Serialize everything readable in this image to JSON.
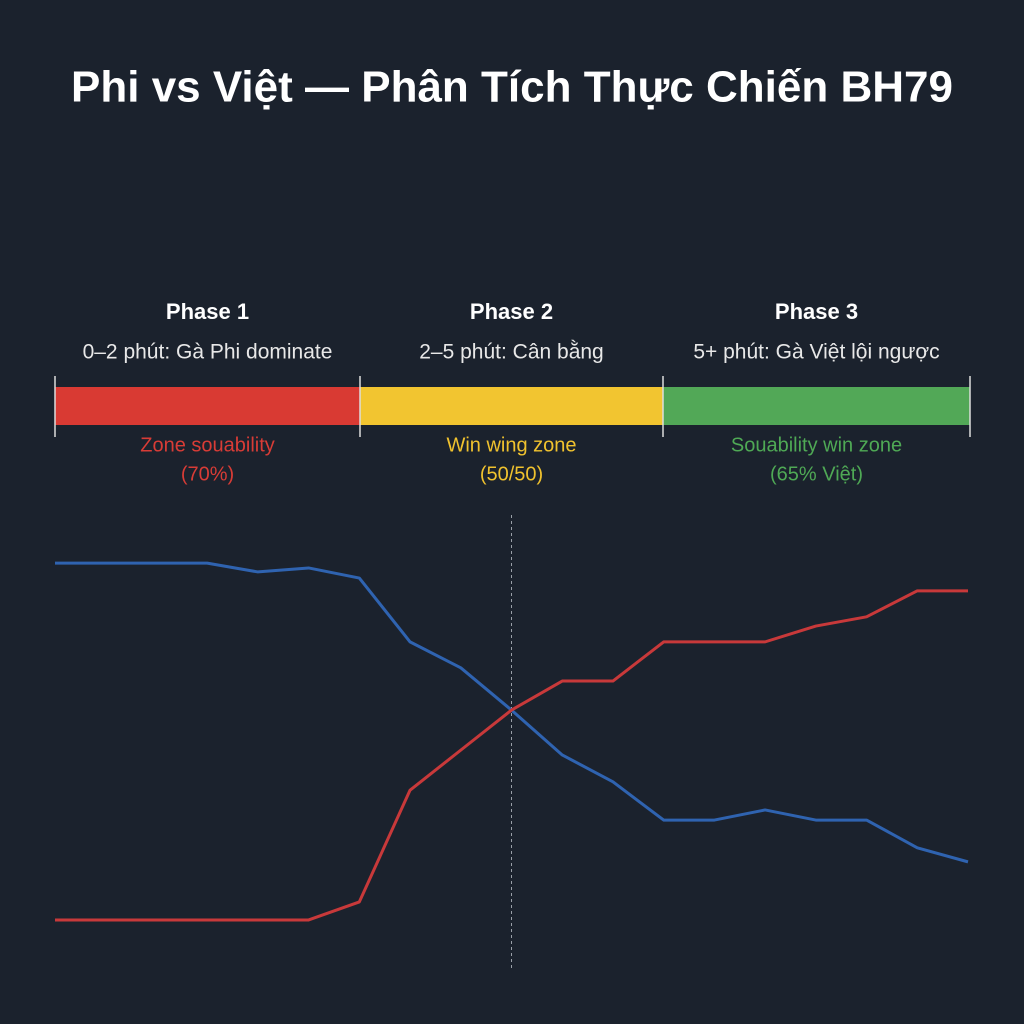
{
  "chart_data": {
    "type": "line",
    "title": "Phi vs Việt — Phân Tích Thực Chiến BH79",
    "phases": [
      {
        "title": "Phase 1",
        "subtitle": "0–2 phút: Gà Phi dominate",
        "zone": "Zone souability",
        "zone_detail": "(70%)",
        "color": "#d93a33",
        "text_color": "#d83c36"
      },
      {
        "title": "Phase 2",
        "subtitle": "2–5 phút: Cân bằng",
        "zone": "Win wing zone",
        "zone_detail": "(50/50)",
        "color": "#f2c530",
        "text_color": "#f0c22e"
      },
      {
        "title": "Phase 3",
        "subtitle": "5+ phút: Gà Việt lội ngược",
        "zone": "Souability win zone",
        "zone_detail": "(65% Việt)",
        "color": "#52a857",
        "text_color": "#4fa955"
      }
    ],
    "x": [
      0,
      1,
      2,
      3,
      4,
      5,
      6,
      7,
      8,
      9,
      10,
      11,
      12,
      13,
      14,
      15,
      16,
      17,
      18
    ],
    "xlim": [
      0,
      18
    ],
    "ylim": [
      0,
      100
    ],
    "marker_x": 9,
    "series": [
      {
        "color": "#2f63b0",
        "values": [
          90.2,
          90.2,
          90.2,
          90.2,
          88.2,
          89.1,
          86.8,
          72.3,
          66.4,
          56.8,
          46.6,
          40.5,
          31.8,
          31.8,
          34.1,
          31.8,
          31.8,
          25.5,
          22.3
        ]
      },
      {
        "color": "#c8393a",
        "values": [
          9.1,
          9.1,
          9.1,
          9.1,
          9.1,
          9.1,
          13.2,
          38.6,
          47.7,
          56.8,
          63.4,
          63.4,
          72.3,
          72.3,
          72.3,
          75.9,
          78.0,
          83.9,
          83.9
        ]
      }
    ]
  }
}
